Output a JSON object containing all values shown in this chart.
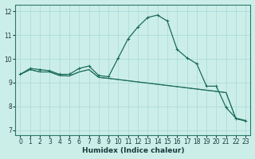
{
  "xlabel": "Humidex (Indice chaleur)",
  "background_color": "#cceee8",
  "line_color": "#1a6b5a",
  "grid_color": "#aadddd",
  "xlim": [
    -0.5,
    23.5
  ],
  "ylim": [
    6.8,
    12.3
  ],
  "xticks": [
    0,
    1,
    2,
    3,
    4,
    5,
    6,
    7,
    8,
    9,
    10,
    11,
    12,
    13,
    14,
    15,
    16,
    17,
    18,
    19,
    20,
    21,
    22,
    23
  ],
  "yticks": [
    7,
    8,
    9,
    10,
    11,
    12
  ],
  "series1_x": [
    0,
    1,
    2,
    3,
    4,
    5,
    6,
    7,
    8,
    9,
    10,
    11,
    12,
    13,
    14,
    15,
    16,
    17,
    18,
    19,
    20,
    21,
    22,
    23
  ],
  "series1_y": [
    9.35,
    9.6,
    9.55,
    9.5,
    9.35,
    9.35,
    9.6,
    9.7,
    9.3,
    9.25,
    10.05,
    10.85,
    11.35,
    11.75,
    11.85,
    11.6,
    10.4,
    10.05,
    9.8,
    8.85,
    8.85,
    7.95,
    7.5,
    7.4
  ],
  "series2_x": [
    0,
    1,
    2,
    3,
    4,
    5,
    6,
    7,
    8,
    9,
    10,
    11,
    12,
    13,
    14,
    15,
    16,
    17,
    18,
    19,
    20,
    21,
    22,
    23
  ],
  "series2_y": [
    9.35,
    9.55,
    9.45,
    9.45,
    9.3,
    9.28,
    9.45,
    9.55,
    9.22,
    9.18,
    9.13,
    9.08,
    9.03,
    8.98,
    8.93,
    8.88,
    8.83,
    8.78,
    8.73,
    8.68,
    8.63,
    8.58,
    7.48,
    7.38
  ],
  "series3_x": [
    0,
    1,
    2,
    3,
    4,
    5,
    6,
    7,
    8,
    9,
    10,
    11,
    12,
    13,
    14,
    15,
    16,
    17,
    18,
    19,
    20,
    21,
    22,
    23
  ],
  "series3_y": [
    9.35,
    9.55,
    9.45,
    9.45,
    9.3,
    9.28,
    9.45,
    9.55,
    9.22,
    9.18,
    9.13,
    9.08,
    9.03,
    8.98,
    8.93,
    8.88,
    8.83,
    8.78,
    8.73,
    8.68,
    8.63,
    8.58,
    7.48,
    7.38
  ]
}
